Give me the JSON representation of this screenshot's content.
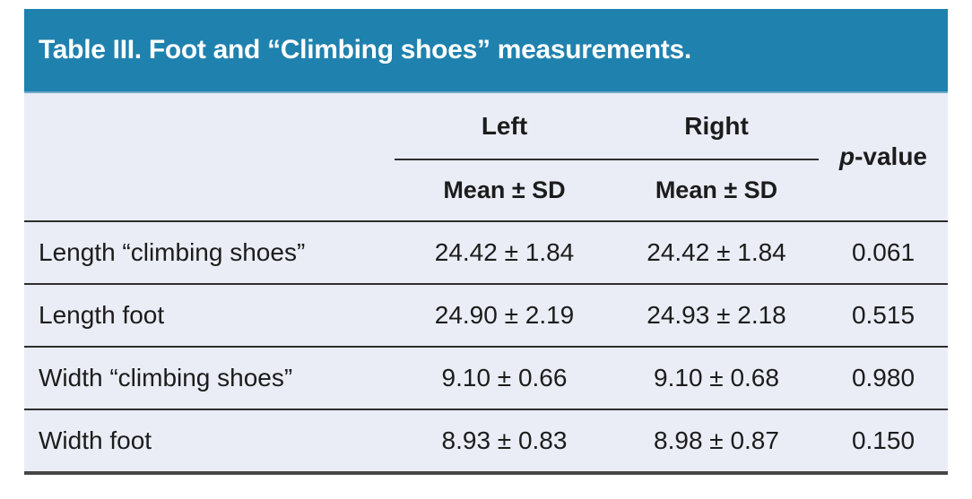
{
  "colors": {
    "title_bar_bg": "#1f81ae",
    "title_bar_divider": "#6fa9c7",
    "title_text": "#ffffff",
    "body_bg": "#eaedf6",
    "rule_color": "#2e2e2e",
    "bottom_border": "#474747",
    "text_color": "#1c1c1c"
  },
  "chart_data": {
    "type": "table",
    "title": "Table III. Foot and “Climbing shoes” measurements.",
    "column_groups": [
      {
        "label": "Left",
        "sub": "Mean ± SD"
      },
      {
        "label": "Right",
        "sub": "Mean ± SD"
      }
    ],
    "p_column": {
      "italic_part": "p",
      "rest_part": "-value",
      "full": "p-value"
    },
    "rows": [
      {
        "label": "Length “climbing shoes”",
        "left": "24.42 ± 1.84",
        "right": "24.42 ± 1.84",
        "p_value": "0.061"
      },
      {
        "label": "Length foot",
        "left": "24.90 ± 2.19",
        "right": "24.93 ± 2.18",
        "p_value": "0.515"
      },
      {
        "label": "Width “climbing shoes”",
        "left": "9.10 ± 0.66",
        "right": "9.10 ± 0.68",
        "p_value": "0.980"
      },
      {
        "label": "Width foot",
        "left": "8.93 ± 0.83",
        "right": "8.98 ± 0.87",
        "p_value": "0.150"
      }
    ]
  }
}
